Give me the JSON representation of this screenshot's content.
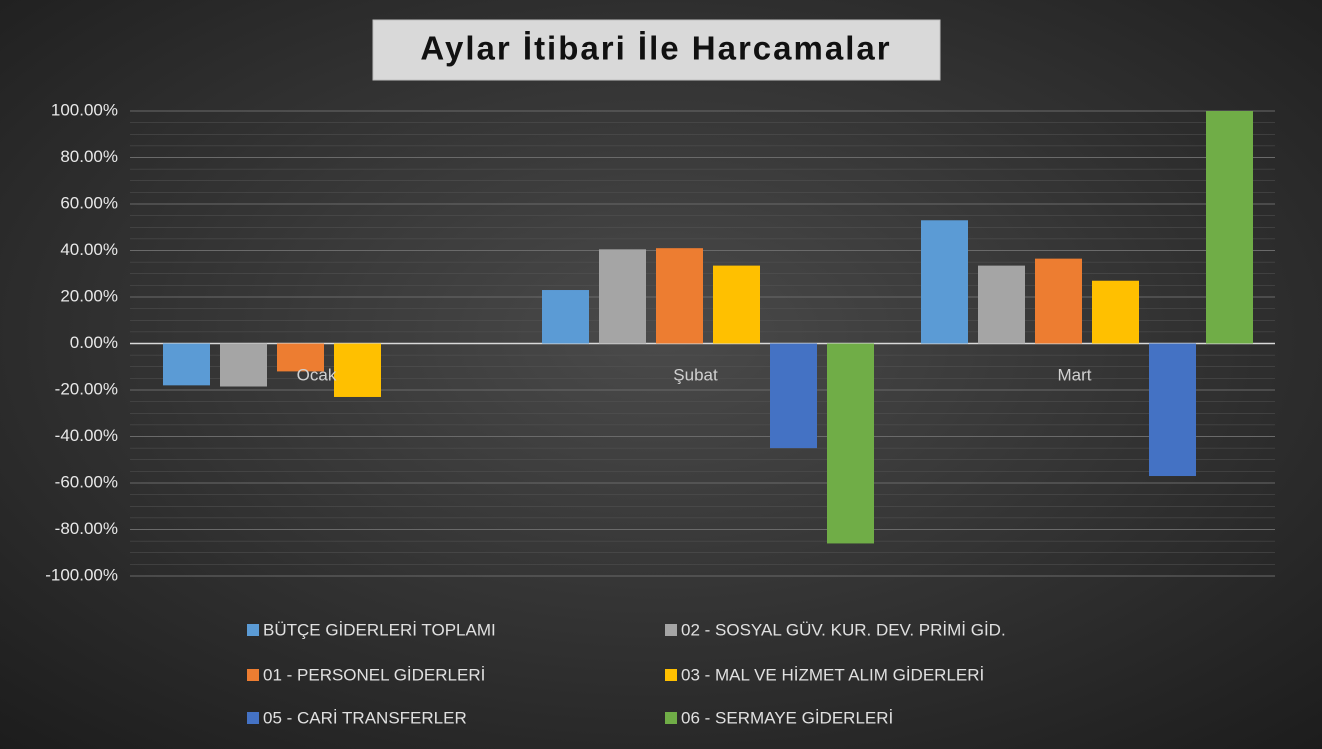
{
  "chart_data": {
    "type": "bar",
    "title": "Aylar İtibari İle Harcamalar",
    "categories": [
      "Ocak",
      "Şubat",
      "Mart"
    ],
    "series": [
      {
        "name": "BÜTÇE GİDERLERİ TOPLAMI",
        "color": "#5b9bd5",
        "values": [
          -18,
          23,
          53
        ]
      },
      {
        "name": "02 - SOSYAL GÜV. KUR. DEV. PRİMİ GİD.",
        "color": "#a5a5a5",
        "values": [
          -18.5,
          40.5,
          33.5
        ]
      },
      {
        "name": "01 - PERSONEL GİDERLERİ",
        "color": "#ed7d31",
        "values": [
          -12,
          41,
          36.5
        ]
      },
      {
        "name": "03 - MAL VE HİZMET ALIM GİDERLERİ",
        "color": "#ffc000",
        "values": [
          -23,
          33.5,
          27
        ]
      },
      {
        "name": "05 - CARİ TRANSFERLER",
        "color": "#4472c4",
        "values": [
          null,
          -45,
          -57
        ]
      },
      {
        "name": "06 - SERMAYE GİDERLERİ",
        "color": "#70ad47",
        "values": [
          null,
          -86,
          100
        ]
      }
    ],
    "ylim": [
      -100,
      100
    ],
    "yticks": [
      {
        "value": 100,
        "label": "100.00%"
      },
      {
        "value": 80,
        "label": "80.00%"
      },
      {
        "value": 60,
        "label": "60.00%"
      },
      {
        "value": 40,
        "label": "40.00%"
      },
      {
        "value": 20,
        "label": "20.00%"
      },
      {
        "value": 0,
        "label": "0.00%"
      },
      {
        "value": -20,
        "label": "-20.00%"
      },
      {
        "value": -40,
        "label": "-40.00%"
      },
      {
        "value": -60,
        "label": "-60.00%"
      },
      {
        "value": -80,
        "label": "-80.00%"
      },
      {
        "value": -100,
        "label": "-100.00%"
      }
    ],
    "grid": true,
    "legend": "bottom"
  }
}
